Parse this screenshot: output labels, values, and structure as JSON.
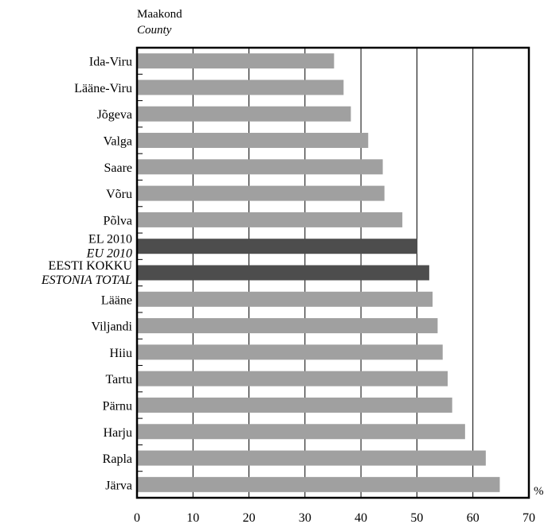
{
  "chart_data": {
    "type": "bar",
    "orientation": "horizontal",
    "yaxis_header": "Maakond",
    "yaxis_header_en": "County",
    "unit_label": "%",
    "xlim": [
      0,
      70
    ],
    "xticks": [
      0,
      10,
      20,
      30,
      40,
      50,
      60,
      70
    ],
    "grid": "vertical",
    "colors": {
      "county": "#a0a0a0",
      "highlight": "#4d4d4d",
      "grid": "#000000"
    },
    "bars": [
      {
        "label": "Ida-Viru",
        "value": 35.2,
        "highlight": false
      },
      {
        "label": "Lääne-Viru",
        "value": 36.9,
        "highlight": false
      },
      {
        "label": "Jõgeva",
        "value": 38.2,
        "highlight": false
      },
      {
        "label": "Valga",
        "value": 41.3,
        "highlight": false
      },
      {
        "label": "Saare",
        "value": 43.9,
        "highlight": false
      },
      {
        "label": "Võru",
        "value": 44.2,
        "highlight": false
      },
      {
        "label": "Põlva",
        "value": 47.4,
        "highlight": false
      },
      {
        "label": "EL 2010",
        "label_en": "EU 2010",
        "value": 50.1,
        "highlight": true
      },
      {
        "label": "EESTI KOKKU",
        "label_en": "ESTONIA TOTAL",
        "value": 52.2,
        "highlight": true
      },
      {
        "label": "Lääne",
        "value": 52.8,
        "highlight": false
      },
      {
        "label": "Viljandi",
        "value": 53.7,
        "highlight": false
      },
      {
        "label": "Hiiu",
        "value": 54.6,
        "highlight": false
      },
      {
        "label": "Tartu",
        "value": 55.5,
        "highlight": false
      },
      {
        "label": "Pärnu",
        "value": 56.3,
        "highlight": false
      },
      {
        "label": "Harju",
        "value": 58.6,
        "highlight": false
      },
      {
        "label": "Rapla",
        "value": 62.3,
        "highlight": false
      },
      {
        "label": "Järva",
        "value": 64.8,
        "highlight": false
      }
    ]
  }
}
